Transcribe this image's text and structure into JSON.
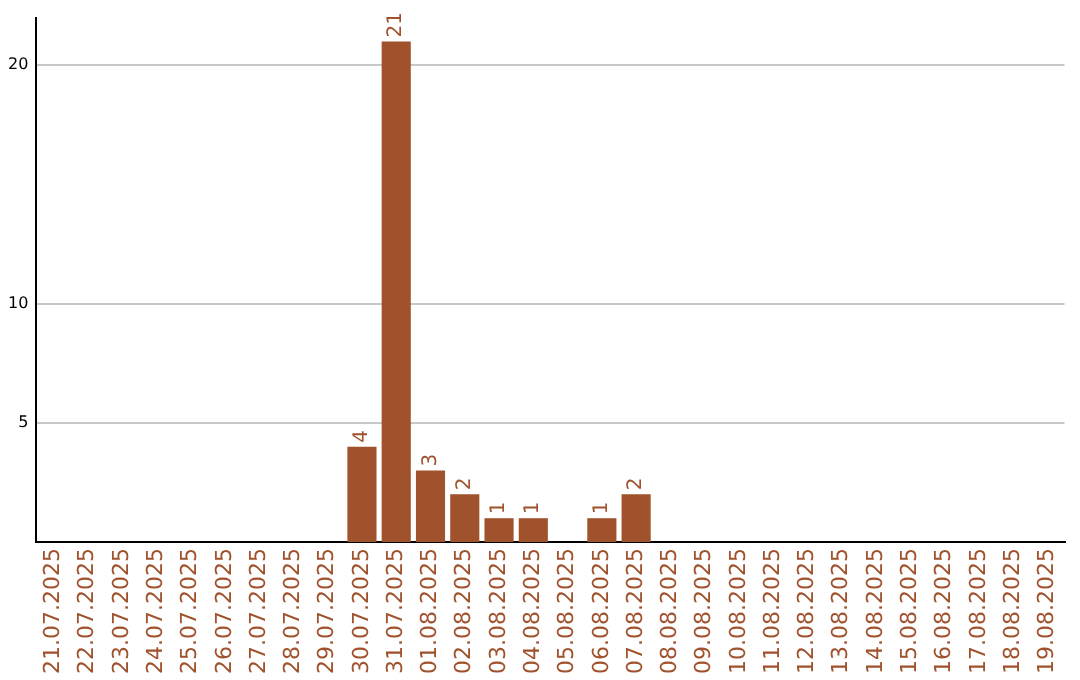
{
  "chart_data": {
    "type": "bar",
    "categories": [
      "21.07.2025",
      "22.07.2025",
      "23.07.2025",
      "24.07.2025",
      "25.07.2025",
      "26.07.2025",
      "27.07.2025",
      "28.07.2025",
      "29.07.2025",
      "30.07.2025",
      "31.07.2025",
      "01.08.2025",
      "02.08.2025",
      "03.08.2025",
      "04.08.2025",
      "05.08.2025",
      "06.08.2025",
      "07.08.2025",
      "08.08.2025",
      "09.08.2025",
      "10.08.2025",
      "11.08.2025",
      "12.08.2025",
      "13.08.2025",
      "14.08.2025",
      "15.08.2025",
      "16.08.2025",
      "17.08.2025",
      "18.08.2025",
      "19.08.2025"
    ],
    "values": [
      0,
      0,
      0,
      0,
      0,
      0,
      0,
      0,
      0,
      4,
      21,
      3,
      2,
      1,
      1,
      0,
      1,
      2,
      0,
      0,
      0,
      0,
      0,
      0,
      0,
      0,
      0,
      0,
      0,
      0
    ],
    "value_labels": [
      null,
      null,
      null,
      null,
      null,
      null,
      null,
      null,
      null,
      "4",
      "21",
      "3",
      "2",
      "1",
      "1",
      null,
      "1",
      "2",
      null,
      null,
      null,
      null,
      null,
      null,
      null,
      null,
      null,
      null,
      null,
      null
    ],
    "color": "#a0522d",
    "ylim": [
      0,
      22
    ],
    "yticks": [
      5,
      10,
      20
    ],
    "grid": "y",
    "legend": false
  }
}
